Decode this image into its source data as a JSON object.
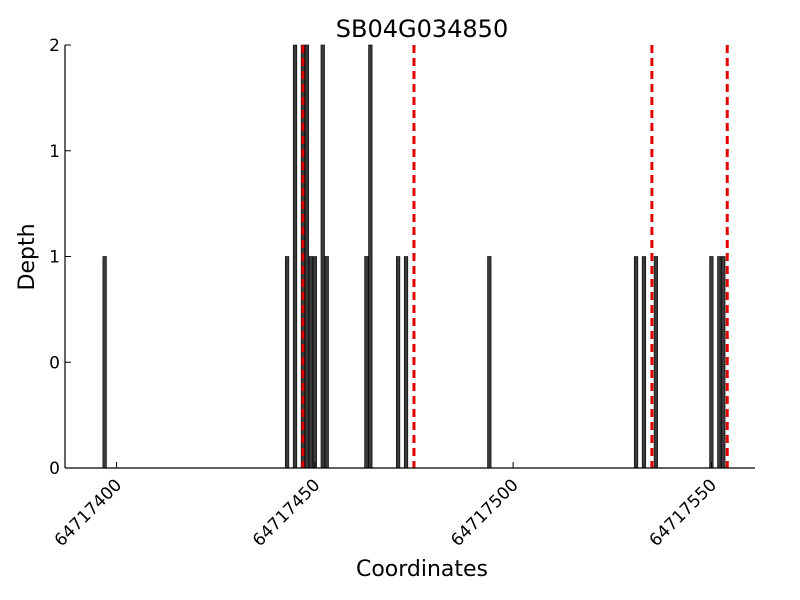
{
  "chart_data": {
    "type": "bar",
    "title": "SB04G034850",
    "xlabel": "Coordinates",
    "ylabel": "Depth",
    "xlim": [
      64717387,
      64717561
    ],
    "ylim": [
      0,
      2
    ],
    "grid": false,
    "x_ticks": [
      64717400,
      64717450,
      64717500,
      64717550
    ],
    "x_tick_labels": [
      "64717400",
      "64717450",
      "64717500",
      "64717550"
    ],
    "y_ticks": [
      0,
      0.5,
      1,
      1.5,
      2
    ],
    "y_tick_labels": [
      "0",
      "0",
      "1",
      "1",
      "2"
    ],
    "series": [
      {
        "x": [
          64717397,
          64717443,
          64717445,
          64717447,
          64717448,
          64717449,
          64717450,
          64717452,
          64717453,
          64717463,
          64717464,
          64717471,
          64717473,
          64717494,
          64717531,
          64717533,
          64717536,
          64717550,
          64717552,
          64717553
        ],
        "values": [
          1,
          1,
          2,
          2,
          2,
          1,
          1,
          2,
          1,
          1,
          2,
          1,
          1,
          1,
          1,
          1,
          1,
          1,
          1,
          1
        ],
        "color": "#3a3a3a"
      }
    ],
    "reference_lines": {
      "x": [
        64717447,
        64717475,
        64717535,
        64717554
      ],
      "color": "#e00000",
      "style": "dashed"
    }
  }
}
